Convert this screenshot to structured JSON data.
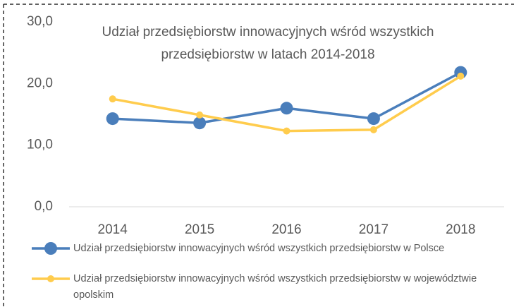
{
  "chart_data": {
    "type": "line",
    "title": "Udział przedsiębiorstw innowacyjnych wśród wszystkich przedsiębiorstw w latach 2014-2018",
    "categories": [
      "2014",
      "2015",
      "2016",
      "2017",
      "2018"
    ],
    "series": [
      {
        "name": "Udział przedsiębiorstw innowacyjnych wśród wszystkich przedsiębiorstw w Polsce",
        "color": "#4a7ebb",
        "values": [
          14.3,
          13.6,
          16.0,
          14.3,
          21.8
        ]
      },
      {
        "name": "Udział przedsiębiorstw innowacyjnych wśród wszystkich przedsiębiorstw w województwie opolskim",
        "color": "#ffcc4d",
        "values": [
          17.5,
          14.9,
          12.3,
          12.5,
          21.2
        ]
      }
    ],
    "ylim": [
      0,
      30
    ],
    "yticks": [
      {
        "value": 0,
        "label": "0,0"
      },
      {
        "value": 10,
        "label": "10,0"
      },
      {
        "value": 20,
        "label": "20,0"
      },
      {
        "value": 30,
        "label": "30,0"
      }
    ],
    "grid": false
  }
}
